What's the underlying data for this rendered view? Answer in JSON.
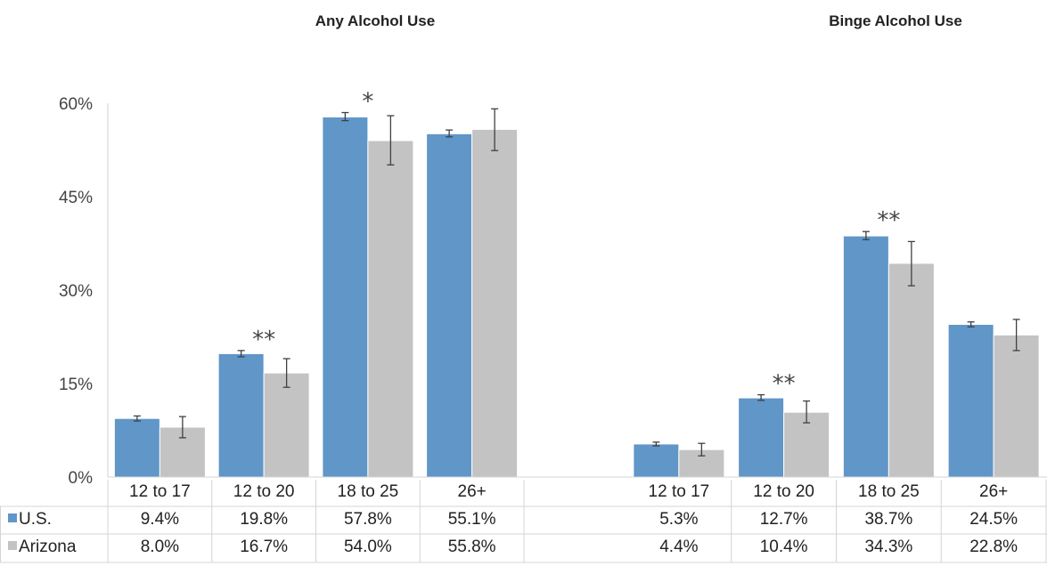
{
  "chart_data": {
    "type": "bar",
    "panels": [
      {
        "title": "Any Alcohol Use",
        "categories": [
          "12 to 17",
          "12 to 20",
          "18 to 25",
          "26+"
        ],
        "annotations": [
          "",
          "**",
          "*",
          ""
        ],
        "series": [
          {
            "name": "U.S.",
            "values": [
              9.4,
              19.8,
              57.8,
              55.1
            ],
            "labels": [
              "9.4%",
              "19.8%",
              "57.8%",
              "55.1%"
            ],
            "error_low": [
              9.0,
              19.3,
              57.2,
              54.6
            ],
            "error_high": [
              9.8,
              20.3,
              58.5,
              55.7
            ]
          },
          {
            "name": "Arizona",
            "values": [
              8.0,
              16.7,
              54.0,
              55.8
            ],
            "labels": [
              "8.0%",
              "16.7%",
              "54.0%",
              "55.8%"
            ],
            "error_low": [
              6.3,
              14.4,
              50.1,
              52.4
            ],
            "error_high": [
              9.7,
              19.0,
              58.0,
              59.1
            ]
          }
        ]
      },
      {
        "title": "Binge Alcohol Use",
        "categories": [
          "12 to 17",
          "12 to 20",
          "18 to 25",
          "26+"
        ],
        "annotations": [
          "",
          "**",
          "**",
          ""
        ],
        "series": [
          {
            "name": "U.S.",
            "values": [
              5.3,
              12.7,
              38.7,
              24.5
            ],
            "labels": [
              "5.3%",
              "12.7%",
              "38.7%",
              "24.5%"
            ],
            "error_low": [
              5.0,
              12.3,
              38.1,
              24.1
            ],
            "error_high": [
              5.6,
              13.2,
              39.4,
              24.9
            ]
          },
          {
            "name": "Arizona",
            "values": [
              4.4,
              10.4,
              34.3,
              22.8
            ],
            "labels": [
              "4.4%",
              "10.4%",
              "34.3%",
              "22.8%"
            ],
            "error_low": [
              3.4,
              8.7,
              30.7,
              20.3
            ],
            "error_high": [
              5.4,
              12.2,
              37.8,
              25.3
            ]
          }
        ]
      }
    ],
    "ylim": [
      0,
      60
    ],
    "yticks": [
      0,
      15,
      30,
      45,
      60
    ],
    "ytick_labels": [
      "0%",
      "15%",
      "30%",
      "45%",
      "60%"
    ],
    "grid": false,
    "legend": "data-table rows",
    "colors": {
      "U.S.": "#6096C8",
      "Arizona": "#C3C3C3"
    }
  }
}
